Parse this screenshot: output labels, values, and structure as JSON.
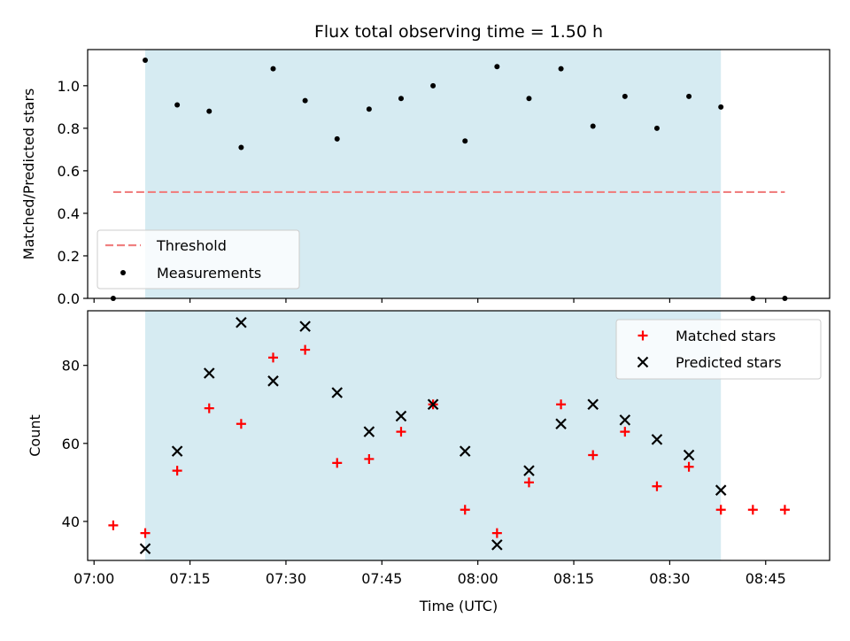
{
  "chart_data": [
    {
      "type": "scatter",
      "title": "Flux total observing time = 1.50 h",
      "xlabel": "",
      "ylabel": "Matched/Predicted stars",
      "ylim": [
        0,
        1.17
      ],
      "xlim_minutes_of_day": [
        419,
        535
      ],
      "y_ticks": [
        "0.0",
        "0.2",
        "0.4",
        "0.6",
        "0.8",
        "1.0"
      ],
      "grid": false,
      "legend_position": "bottom-left",
      "observing_window": {
        "start": "07:08",
        "end": "08:38",
        "color": "#add8e6"
      },
      "threshold": {
        "name": "Threshold",
        "value": 0.5,
        "x_range": [
          "07:03",
          "08:48"
        ],
        "color": "#f08080",
        "style": "dashed"
      },
      "series": [
        {
          "name": "Measurements",
          "color": "#000000",
          "marker": "dot",
          "points": [
            {
              "x": "07:03",
              "y": 0.0
            },
            {
              "x": "07:08",
              "y": 1.12
            },
            {
              "x": "07:13",
              "y": 0.91
            },
            {
              "x": "07:18",
              "y": 0.88
            },
            {
              "x": "07:23",
              "y": 0.71
            },
            {
              "x": "07:28",
              "y": 1.08
            },
            {
              "x": "07:33",
              "y": 0.93
            },
            {
              "x": "07:38",
              "y": 0.75
            },
            {
              "x": "07:43",
              "y": 0.89
            },
            {
              "x": "07:48",
              "y": 0.94
            },
            {
              "x": "07:53",
              "y": 1.0
            },
            {
              "x": "07:58",
              "y": 0.74
            },
            {
              "x": "08:03",
              "y": 1.09
            },
            {
              "x": "08:08",
              "y": 0.94
            },
            {
              "x": "08:13",
              "y": 1.08
            },
            {
              "x": "08:18",
              "y": 0.81
            },
            {
              "x": "08:23",
              "y": 0.95
            },
            {
              "x": "08:28",
              "y": 0.8
            },
            {
              "x": "08:33",
              "y": 0.95
            },
            {
              "x": "08:38",
              "y": 0.9
            },
            {
              "x": "08:43",
              "y": 0.0
            },
            {
              "x": "08:48",
              "y": 0.0
            }
          ]
        }
      ]
    },
    {
      "type": "scatter",
      "title": "",
      "xlabel": "Time (UTC)",
      "ylabel": "Count",
      "ylim": [
        30,
        94
      ],
      "xlim_minutes_of_day": [
        419,
        535
      ],
      "x_ticks": [
        "07:00",
        "07:15",
        "07:30",
        "07:45",
        "08:00",
        "08:15",
        "08:30",
        "08:45"
      ],
      "y_ticks": [
        "40",
        "60",
        "80"
      ],
      "grid": false,
      "legend_position": "top-right",
      "observing_window": {
        "start": "07:08",
        "end": "08:38",
        "color": "#add8e6"
      },
      "series": [
        {
          "name": "Matched stars",
          "color": "#ff0000",
          "marker": "plus",
          "points": [
            {
              "x": "07:03",
              "y": 39
            },
            {
              "x": "07:08",
              "y": 37
            },
            {
              "x": "07:13",
              "y": 53
            },
            {
              "x": "07:18",
              "y": 69
            },
            {
              "x": "07:23",
              "y": 65
            },
            {
              "x": "07:28",
              "y": 82
            },
            {
              "x": "07:33",
              "y": 84
            },
            {
              "x": "07:38",
              "y": 55
            },
            {
              "x": "07:43",
              "y": 56
            },
            {
              "x": "07:48",
              "y": 63
            },
            {
              "x": "07:53",
              "y": 70
            },
            {
              "x": "07:58",
              "y": 43
            },
            {
              "x": "08:03",
              "y": 37
            },
            {
              "x": "08:08",
              "y": 50
            },
            {
              "x": "08:13",
              "y": 70
            },
            {
              "x": "08:18",
              "y": 57
            },
            {
              "x": "08:23",
              "y": 63
            },
            {
              "x": "08:28",
              "y": 49
            },
            {
              "x": "08:33",
              "y": 54
            },
            {
              "x": "08:38",
              "y": 43
            },
            {
              "x": "08:43",
              "y": 43
            },
            {
              "x": "08:48",
              "y": 43
            }
          ]
        },
        {
          "name": "Predicted stars",
          "color": "#000000",
          "marker": "x",
          "points": [
            {
              "x": "07:08",
              "y": 33
            },
            {
              "x": "07:13",
              "y": 58
            },
            {
              "x": "07:18",
              "y": 78
            },
            {
              "x": "07:23",
              "y": 91
            },
            {
              "x": "07:28",
              "y": 76
            },
            {
              "x": "07:33",
              "y": 90
            },
            {
              "x": "07:38",
              "y": 73
            },
            {
              "x": "07:43",
              "y": 63
            },
            {
              "x": "07:48",
              "y": 67
            },
            {
              "x": "07:53",
              "y": 70
            },
            {
              "x": "07:58",
              "y": 58
            },
            {
              "x": "08:03",
              "y": 34
            },
            {
              "x": "08:08",
              "y": 53
            },
            {
              "x": "08:13",
              "y": 65
            },
            {
              "x": "08:18",
              "y": 70
            },
            {
              "x": "08:23",
              "y": 66
            },
            {
              "x": "08:28",
              "y": 61
            },
            {
              "x": "08:33",
              "y": 57
            },
            {
              "x": "08:38",
              "y": 48
            }
          ]
        }
      ]
    }
  ]
}
